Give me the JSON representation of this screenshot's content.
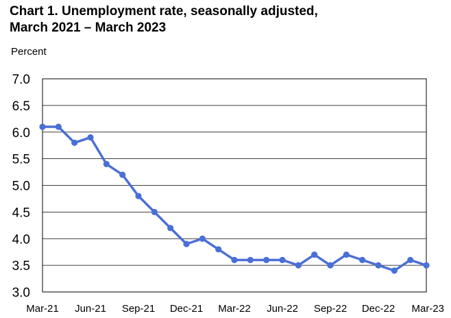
{
  "chart_data": {
    "type": "line",
    "title": "Chart 1. Unemployment rate, seasonally adjusted,",
    "subtitle": "March 2021 – March 2023",
    "ylabel": "Percent",
    "xlabel": "",
    "ylim": [
      3.0,
      7.0
    ],
    "y_ticks": [
      "7.0",
      "6.5",
      "6.0",
      "5.5",
      "5.0",
      "4.5",
      "4.0",
      "3.5",
      "3.0"
    ],
    "x_tick_labels": [
      "Mar-21",
      "Jun-21",
      "Sep-21",
      "Dec-21",
      "Mar-22",
      "Jun-22",
      "Sep-22",
      "Dec-22",
      "Mar-23"
    ],
    "x": [
      "Mar-21",
      "Apr-21",
      "May-21",
      "Jun-21",
      "Jul-21",
      "Aug-21",
      "Sep-21",
      "Oct-21",
      "Nov-21",
      "Dec-21",
      "Jan-22",
      "Feb-22",
      "Mar-22",
      "Apr-22",
      "May-22",
      "Jun-22",
      "Jul-22",
      "Aug-22",
      "Sep-22",
      "Oct-22",
      "Nov-22",
      "Dec-22",
      "Jan-23",
      "Feb-23",
      "Mar-23"
    ],
    "series": [
      {
        "values": [
          6.1,
          6.1,
          5.8,
          5.9,
          5.4,
          5.2,
          4.8,
          4.5,
          4.2,
          3.9,
          4.0,
          3.8,
          3.6,
          3.6,
          3.6,
          3.6,
          3.5,
          3.7,
          3.5,
          3.7,
          3.6,
          3.5,
          3.4,
          3.6,
          3.5
        ],
        "color": "#4a6fd6"
      }
    ],
    "grid": true,
    "legend": "none"
  }
}
